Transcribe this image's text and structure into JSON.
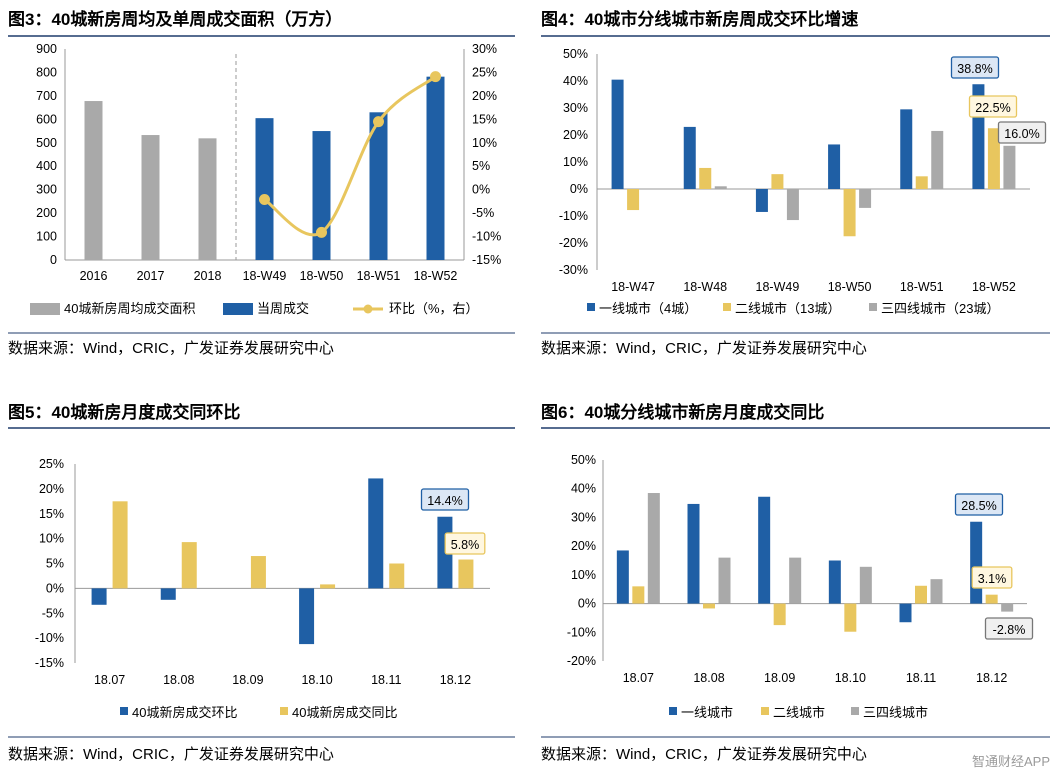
{
  "colors": {
    "blue": "#1F5FA5",
    "gold": "#E8C65E",
    "gray": "#A9A9A9",
    "rule": "#1F3B6B"
  },
  "watermark": "智通财经APP",
  "charts": [
    {
      "title": "图3：40城新房周均及单周成交面积（万方）",
      "source": "数据来源：Wind，CRIC，广发证券发展研究中心",
      "legend": [
        "40城新房周均成交面积",
        "当周成交",
        "环比（%，右）"
      ],
      "chart_data": {
        "type": "bar",
        "categories": [
          "2016",
          "2017",
          "2018",
          "18-W49",
          "18-W50",
          "18-W51",
          "18-W52"
        ],
        "series": [
          {
            "name": "40城新房周均成交面积",
            "values": [
              678,
              533,
              519,
              null,
              null,
              null,
              null
            ]
          },
          {
            "name": "当周成交",
            "values": [
              null,
              null,
              null,
              605,
              550,
              630,
              782
            ]
          },
          {
            "name": "环比（%，右）",
            "type": "line",
            "axis": "right",
            "values": [
              null,
              null,
              null,
              -2.1,
              -9.1,
              14.5,
              24.1
            ]
          }
        ],
        "ylim": [
          0,
          900
        ],
        "yticks": [
          "0",
          "100",
          "200",
          "300",
          "400",
          "500",
          "600",
          "700",
          "800",
          "900"
        ],
        "y2lim": [
          -15,
          30
        ],
        "y2ticks": [
          "-15%",
          "-10%",
          "-5%",
          "0%",
          "5%",
          "10%",
          "15%",
          "20%",
          "25%",
          "30%"
        ]
      }
    },
    {
      "title": "图4：40城市分线城市新房周成交环比增速",
      "source": "数据来源：Wind，CRIC，广发证券发展研究中心",
      "legend": [
        "一线城市（4城）",
        "二线城市（13城）",
        "三四线城市（23城）"
      ],
      "chart_data": {
        "type": "bar",
        "categories": [
          "18-W47",
          "18-W48",
          "18-W49",
          "18-W50",
          "18-W51",
          "18-W52"
        ],
        "series": [
          {
            "name": "一线城市（4城）",
            "values": [
              40.5,
              23.0,
              -8.5,
              16.5,
              29.5,
              38.8
            ]
          },
          {
            "name": "二线城市（13城）",
            "values": [
              -7.8,
              7.8,
              5.5,
              -17.5,
              4.7,
              22.5
            ]
          },
          {
            "name": "三四线城市（23城）",
            "values": [
              0,
              1.0,
              -11.5,
              -7.0,
              21.5,
              16.0
            ]
          }
        ],
        "ylim": [
          -30,
          50
        ],
        "yticks": [
          "-30%",
          "-20%",
          "-10%",
          "0%",
          "10%",
          "20%",
          "30%",
          "40%",
          "50%"
        ],
        "callouts": [
          "38.8%",
          "22.5%",
          "16.0%"
        ]
      }
    },
    {
      "title": "图5：40城新房月度成交同环比",
      "source": "数据来源：Wind，CRIC，广发证券发展研究中心",
      "legend": [
        "40城新房成交环比",
        "40城新房成交同比"
      ],
      "chart_data": {
        "type": "bar",
        "categories": [
          "18.07",
          "18.08",
          "18.09",
          "18.10",
          "18.11",
          "18.12"
        ],
        "series": [
          {
            "name": "40城新房成交环比",
            "values": [
              -3.3,
              -2.3,
              0,
              -11.2,
              22.1,
              14.4
            ]
          },
          {
            "name": "40城新房成交同比",
            "values": [
              17.5,
              9.3,
              6.5,
              0.8,
              5.0,
              5.8
            ]
          }
        ],
        "ylim": [
          -15,
          25
        ],
        "yticks": [
          "-15%",
          "-10%",
          "-5%",
          "0%",
          "5%",
          "10%",
          "15%",
          "20%",
          "25%"
        ],
        "callouts": [
          "14.4%",
          "5.8%"
        ]
      }
    },
    {
      "title": "图6：40城分线城市新房月度成交同比",
      "source": "数据来源：Wind，CRIC，广发证券发展研究中心",
      "legend": [
        "一线城市",
        "二线城市",
        "三四线城市"
      ],
      "chart_data": {
        "type": "bar",
        "categories": [
          "18.07",
          "18.08",
          "18.09",
          "18.10",
          "18.11",
          "18.12"
        ],
        "series": [
          {
            "name": "一线城市",
            "values": [
              18.5,
              34.7,
              37.2,
              15.0,
              -6.5,
              28.5
            ]
          },
          {
            "name": "二线城市",
            "values": [
              6.0,
              -1.7,
              -7.5,
              -9.8,
              6.2,
              3.1
            ]
          },
          {
            "name": "三四线城市",
            "values": [
              38.5,
              16.0,
              16.0,
              12.8,
              8.5,
              -2.8
            ]
          }
        ],
        "ylim": [
          -20,
          50
        ],
        "yticks": [
          "-20%",
          "-10%",
          "0%",
          "10%",
          "20%",
          "30%",
          "40%",
          "50%"
        ],
        "callouts": [
          "28.5%",
          "3.1%",
          "-2.8%"
        ]
      }
    }
  ]
}
